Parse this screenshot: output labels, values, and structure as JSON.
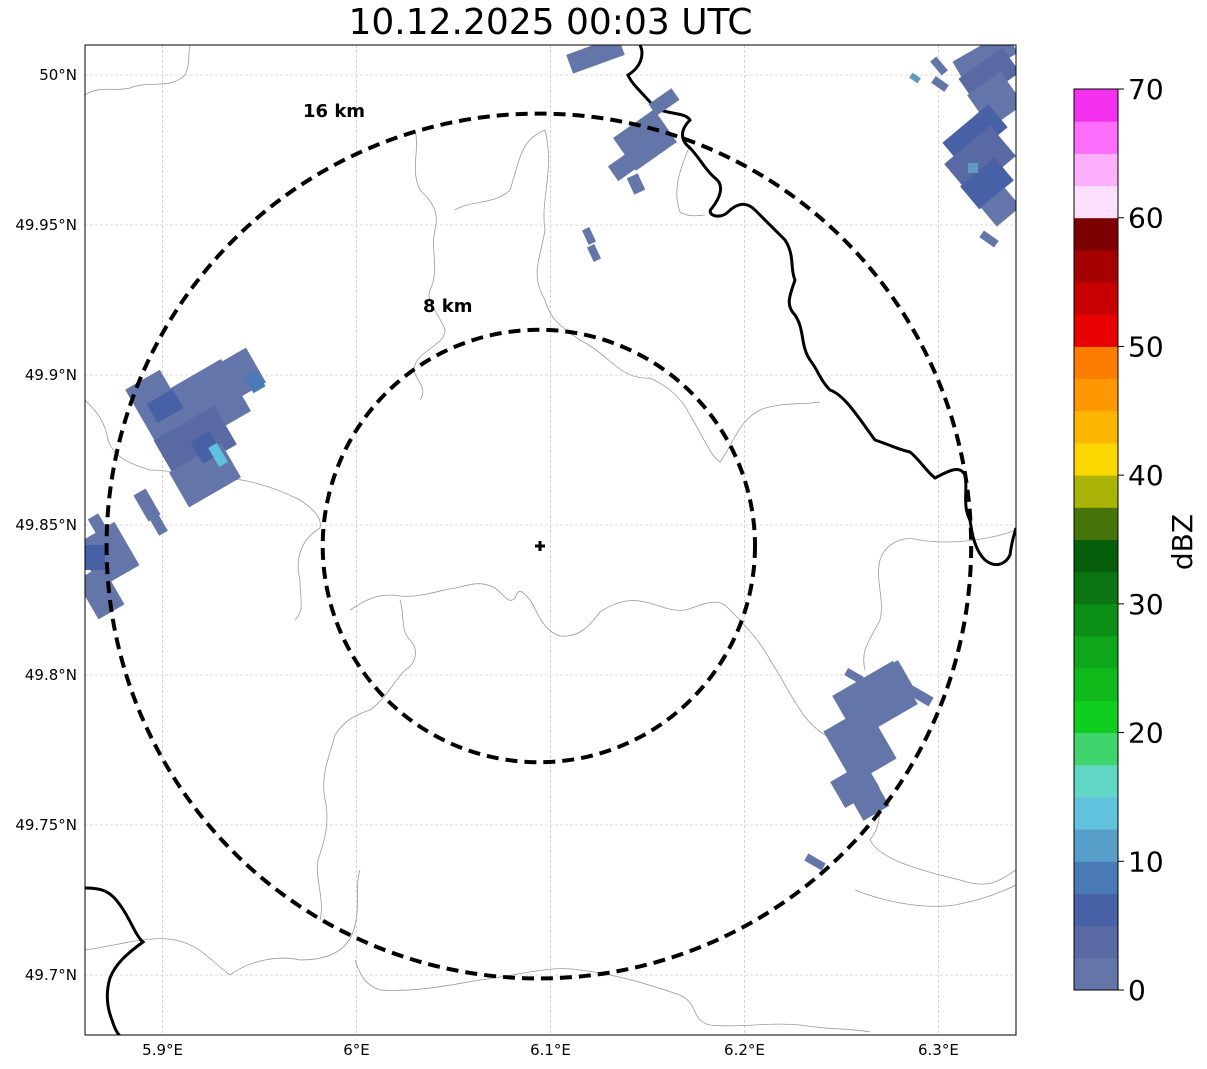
{
  "title": "10.12.2025 00:03 UTC",
  "map": {
    "lon_range": [
      5.86,
      6.34
    ],
    "lat_range": [
      49.68,
      50.01
    ],
    "lon_ticks": [
      {
        "value": 5.9,
        "label": "5.9°E"
      },
      {
        "value": 6.0,
        "label": "6°E"
      },
      {
        "value": 6.1,
        "label": "6.1°E"
      },
      {
        "value": 6.2,
        "label": "6.2°E"
      },
      {
        "value": 6.3,
        "label": "6.3°E"
      }
    ],
    "lat_ticks": [
      {
        "value": 50.0,
        "label": "50°N"
      },
      {
        "value": 49.95,
        "label": "49.95°N"
      },
      {
        "value": 49.9,
        "label": "49.9°N"
      },
      {
        "value": 49.85,
        "label": "49.85°N"
      },
      {
        "value": 49.8,
        "label": "49.8°N"
      },
      {
        "value": 49.75,
        "label": "49.75°N"
      },
      {
        "value": 49.7,
        "label": "49.7°N"
      }
    ],
    "radar_center": {
      "lon": 6.094,
      "lat": 49.843
    },
    "rings": [
      {
        "radius_km": 8,
        "label": "8 km"
      },
      {
        "radius_km": 16,
        "label": "16 km"
      }
    ]
  },
  "colorbar": {
    "label": "dBZ",
    "vmin": 0,
    "vmax": 70,
    "ticks": [
      "0",
      "10",
      "20",
      "30",
      "40",
      "50",
      "60",
      "70"
    ],
    "colors": [
      "#6476a9",
      "#5869a4",
      "#4760a6",
      "#4a7ab5",
      "#579fca",
      "#61c2de",
      "#61d6c4",
      "#3ed56d",
      "#0fcd1f",
      "#10b91a",
      "#0ea61a",
      "#0c8f17",
      "#0b7413",
      "#065e0b",
      "#457508",
      "#aab407",
      "#fbd600",
      "#fdb600",
      "#fd9800",
      "#fc7d00",
      "#e80000",
      "#c70000",
      "#a40000",
      "#7c0000",
      "#fde0fe",
      "#fcafff",
      "#fd6dfb",
      "#f531f0"
    ]
  },
  "echo_colors": {
    "weak": "#6476a9",
    "mid": "#4760a6",
    "light": "#5fc0df"
  }
}
